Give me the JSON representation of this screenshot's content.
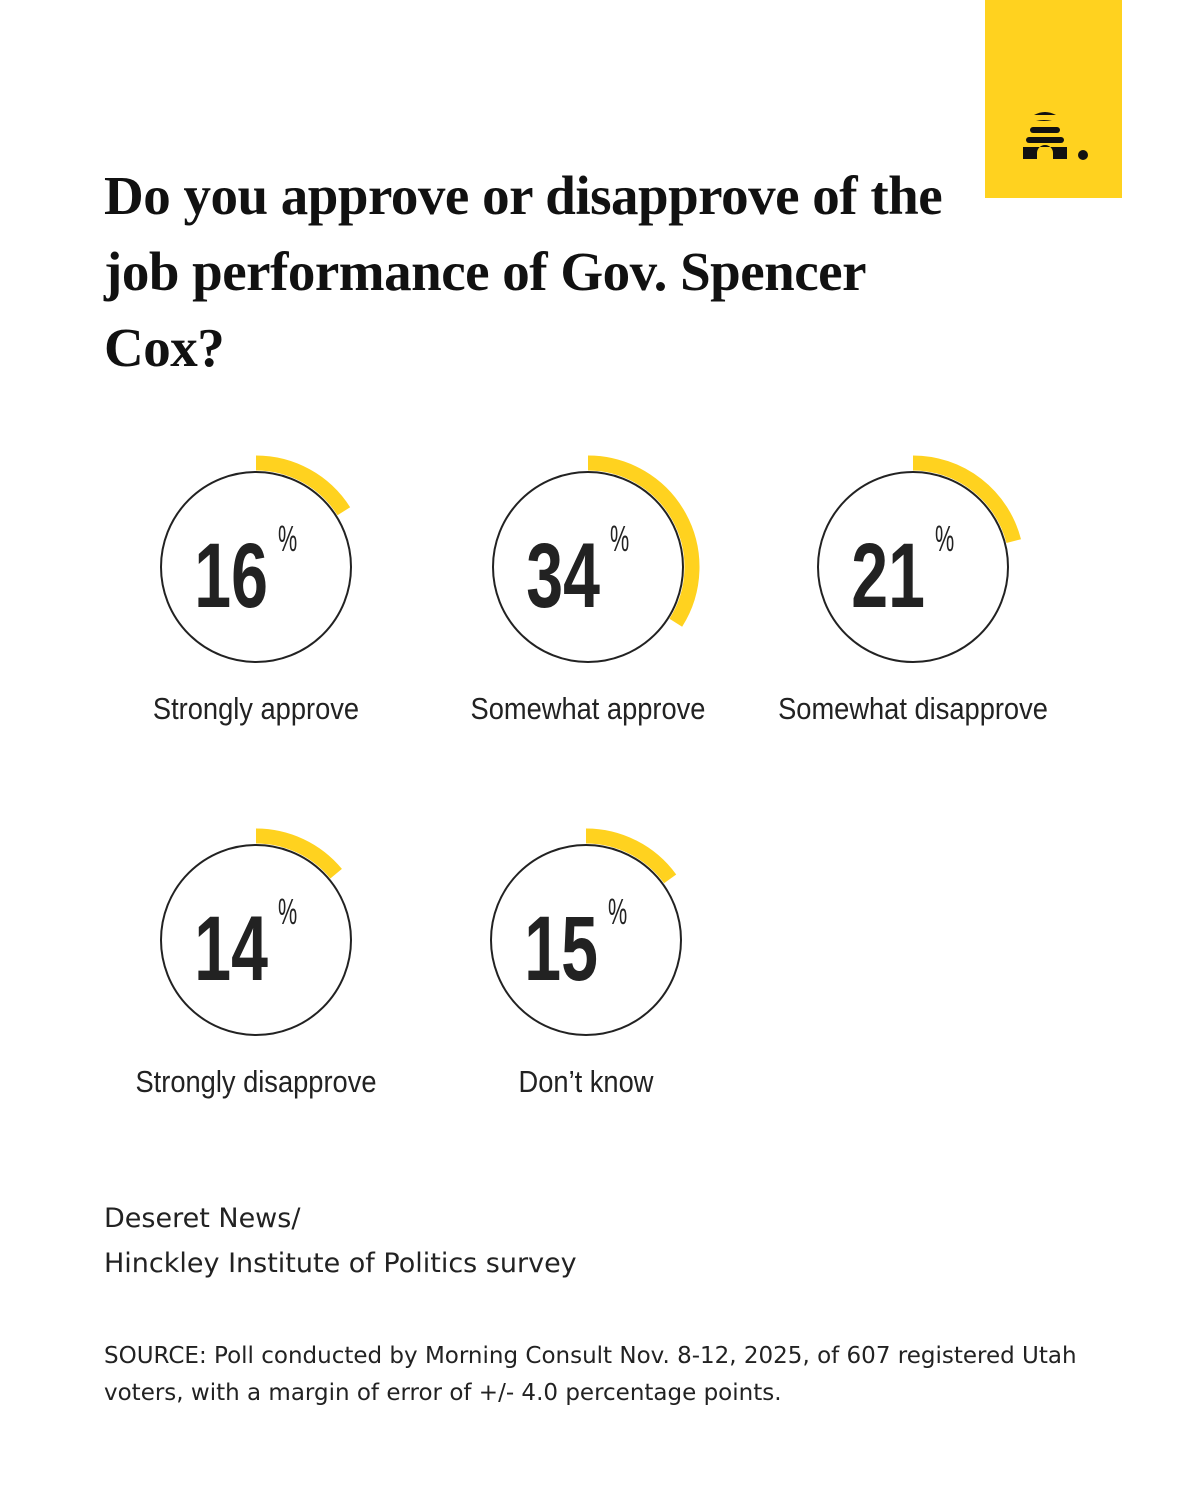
{
  "chart_data": {
    "type": "radial",
    "title": "Do you approve or disapprove of the job performance of Gov. Spencer Cox?",
    "categories": [
      "Strongly approve",
      "Somewhat approve",
      "Somewhat disapprove",
      "Strongly disapprove",
      "Don’t know"
    ],
    "values": [
      16,
      34,
      21,
      14,
      15
    ],
    "unit": "%",
    "color": "#ffd21f",
    "credit": [
      "Deseret News/",
      "Hinckley Institute of Politics survey"
    ],
    "source": "SOURCE: Poll conducted by Morning Consult Nov. 8-12, 2025, of 607 registered Utah voters, with a margin of error of +/- 4.0 percentage points."
  }
}
